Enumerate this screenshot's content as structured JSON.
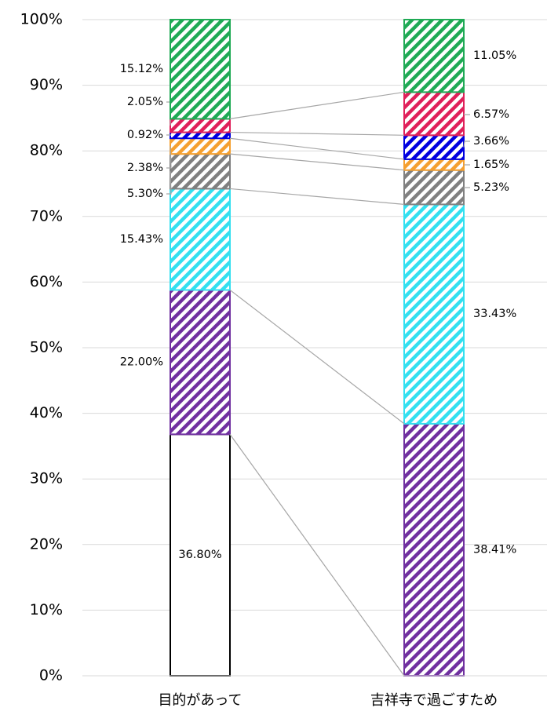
{
  "chart_data": {
    "type": "stacked_bar",
    "categories": [
      "目的があって",
      "吉祥寺で過ごすため"
    ],
    "series": [
      {
        "color": "#000000",
        "values": [
          36.8,
          0
        ],
        "value_labels": [
          "36.80%",
          null
        ]
      },
      {
        "color": "#7030a0",
        "values": [
          22.0,
          38.41
        ],
        "value_labels": [
          "22.00%",
          "38.41%"
        ]
      },
      {
        "color": "#33e0f0",
        "values": [
          15.43,
          33.43
        ],
        "value_labels": [
          "15.43%",
          "33.43%"
        ]
      },
      {
        "color": "#808080",
        "values": [
          5.3,
          5.23
        ],
        "value_labels": [
          "5.30%",
          "5.23%"
        ]
      },
      {
        "color": "#f5a030",
        "values": [
          2.38,
          1.65
        ],
        "value_labels": [
          "2.38%",
          "1.65%"
        ]
      },
      {
        "color": "#0000e0",
        "values": [
          0.92,
          3.66
        ],
        "value_labels": [
          "0.92%",
          "3.66%"
        ]
      },
      {
        "color": "#e0205a",
        "values": [
          2.05,
          6.57
        ],
        "value_labels": [
          "2.05%",
          "6.57%"
        ]
      },
      {
        "color": "#1faa55",
        "values": [
          15.12,
          11.05
        ],
        "value_labels": [
          "15.12%",
          "11.05%"
        ]
      }
    ],
    "ylim": [
      0,
      100
    ],
    "yticks": [
      {
        "value": 0,
        "label": "0%"
      },
      {
        "value": 10,
        "label": "10%"
      },
      {
        "value": 20,
        "label": "20%"
      },
      {
        "value": 30,
        "label": "30%"
      },
      {
        "value": 40,
        "label": "40%"
      },
      {
        "value": 50,
        "label": "50%"
      },
      {
        "value": 60,
        "label": "60%"
      },
      {
        "value": 70,
        "label": "70%"
      },
      {
        "value": 80,
        "label": "80%"
      },
      {
        "value": 90,
        "label": "90%"
      },
      {
        "value": 100,
        "label": "100%"
      }
    ],
    "grid": true
  }
}
